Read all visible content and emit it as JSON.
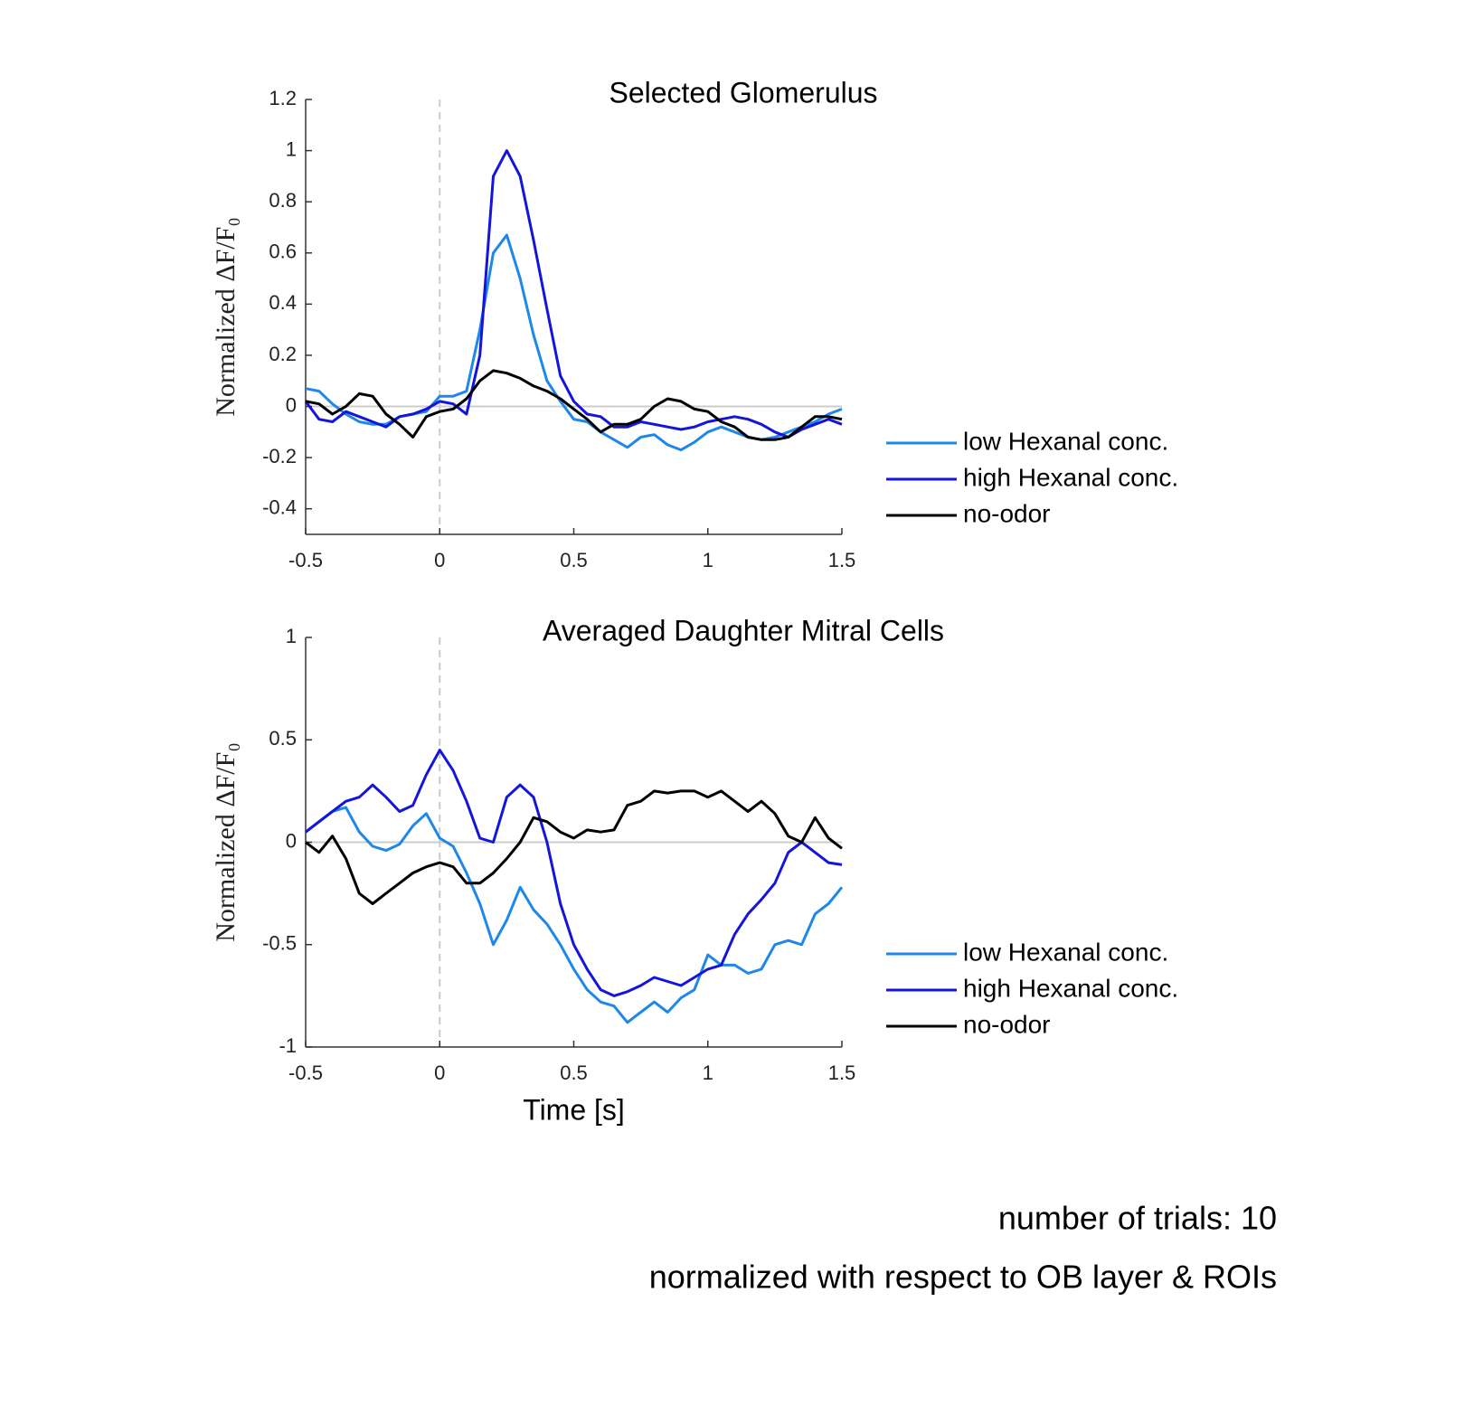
{
  "chart_data": [
    {
      "type": "line",
      "title": "Selected Glomerulus",
      "ylabel": "Normalized ΔF/F₀",
      "x": [
        -0.5,
        -0.45,
        -0.4,
        -0.35,
        -0.3,
        -0.25,
        -0.2,
        -0.15,
        -0.1,
        -0.05,
        0,
        0.05,
        0.1,
        0.15,
        0.2,
        0.25,
        0.3,
        0.35,
        0.4,
        0.45,
        0.5,
        0.55,
        0.6,
        0.65,
        0.7,
        0.75,
        0.8,
        0.85,
        0.9,
        0.95,
        1,
        1.05,
        1.1,
        1.15,
        1.2,
        1.25,
        1.3,
        1.35,
        1.4,
        1.45,
        1.5
      ],
      "series": [
        {
          "name": "low Hexanal conc.",
          "color": "#1e88e8",
          "values": [
            0.07,
            0.06,
            0.01,
            -0.03,
            -0.06,
            -0.07,
            -0.07,
            -0.04,
            -0.03,
            -0.02,
            0.04,
            0.04,
            0.06,
            0.3,
            0.6,
            0.67,
            0.5,
            0.28,
            0.1,
            0.02,
            -0.05,
            -0.06,
            -0.1,
            -0.13,
            -0.16,
            -0.12,
            -0.11,
            -0.15,
            -0.17,
            -0.14,
            -0.1,
            -0.08,
            -0.1,
            -0.12,
            -0.13,
            -0.12,
            -0.1,
            -0.08,
            -0.06,
            -0.03,
            -0.01
          ]
        },
        {
          "name": "high Hexanal conc.",
          "color": "#1414dc",
          "values": [
            0.02,
            -0.05,
            -0.06,
            -0.02,
            -0.04,
            -0.06,
            -0.08,
            -0.04,
            -0.03,
            -0.01,
            0.02,
            0.01,
            -0.03,
            0.2,
            0.9,
            1.0,
            0.9,
            0.65,
            0.38,
            0.12,
            0.02,
            -0.03,
            -0.04,
            -0.08,
            -0.08,
            -0.06,
            -0.07,
            -0.08,
            -0.09,
            -0.08,
            -0.06,
            -0.05,
            -0.04,
            -0.05,
            -0.07,
            -0.1,
            -0.12,
            -0.09,
            -0.07,
            -0.05,
            -0.07
          ]
        },
        {
          "name": "no-odor",
          "color": "#000000",
          "values": [
            0.02,
            0.01,
            -0.03,
            0.0,
            0.05,
            0.04,
            -0.03,
            -0.07,
            -0.12,
            -0.04,
            -0.02,
            -0.01,
            0.03,
            0.1,
            0.14,
            0.13,
            0.11,
            0.08,
            0.06,
            0.03,
            -0.01,
            -0.05,
            -0.1,
            -0.07,
            -0.07,
            -0.05,
            0.0,
            0.03,
            0.02,
            -0.01,
            -0.02,
            -0.06,
            -0.08,
            -0.12,
            -0.13,
            -0.13,
            -0.12,
            -0.08,
            -0.04,
            -0.04,
            -0.05
          ]
        }
      ],
      "xlim": [
        -0.5,
        1.5
      ],
      "xticks": [
        -0.5,
        0,
        0.5,
        1,
        1.5
      ],
      "ylim": [
        -0.5,
        1.2
      ],
      "yticks": [
        -0.4,
        -0.2,
        0,
        0.2,
        0.4,
        0.6,
        0.8,
        1,
        1.2
      ]
    },
    {
      "type": "line",
      "title": "Averaged Daughter Mitral Cells",
      "ylabel": "Normalized ΔF/F₀",
      "xlabel": "Time [s]",
      "x": [
        -0.5,
        -0.45,
        -0.4,
        -0.35,
        -0.3,
        -0.25,
        -0.2,
        -0.15,
        -0.1,
        -0.05,
        0,
        0.05,
        0.1,
        0.15,
        0.2,
        0.25,
        0.3,
        0.35,
        0.4,
        0.45,
        0.5,
        0.55,
        0.6,
        0.65,
        0.7,
        0.75,
        0.8,
        0.85,
        0.9,
        0.95,
        1,
        1.05,
        1.1,
        1.15,
        1.2,
        1.25,
        1.3,
        1.35,
        1.4,
        1.45,
        1.5
      ],
      "series": [
        {
          "name": "low Hexanal conc.",
          "color": "#1e88e8",
          "values": [
            0.05,
            0.1,
            0.15,
            0.17,
            0.05,
            -0.02,
            -0.04,
            -0.01,
            0.08,
            0.14,
            0.02,
            -0.02,
            -0.15,
            -0.3,
            -0.5,
            -0.38,
            -0.22,
            -0.33,
            -0.4,
            -0.5,
            -0.62,
            -0.72,
            -0.78,
            -0.8,
            -0.88,
            -0.83,
            -0.78,
            -0.83,
            -0.76,
            -0.72,
            -0.55,
            -0.6,
            -0.6,
            -0.64,
            -0.62,
            -0.5,
            -0.48,
            -0.5,
            -0.35,
            -0.3,
            -0.22
          ]
        },
        {
          "name": "high Hexanal conc.",
          "color": "#1414dc",
          "values": [
            0.05,
            0.1,
            0.15,
            0.2,
            0.22,
            0.28,
            0.22,
            0.15,
            0.18,
            0.33,
            0.45,
            0.35,
            0.2,
            0.02,
            0.0,
            0.22,
            0.28,
            0.22,
            0.0,
            -0.3,
            -0.5,
            -0.62,
            -0.72,
            -0.75,
            -0.73,
            -0.7,
            -0.66,
            -0.68,
            -0.7,
            -0.66,
            -0.62,
            -0.6,
            -0.45,
            -0.35,
            -0.28,
            -0.2,
            -0.05,
            0.0,
            -0.05,
            -0.1,
            -0.11
          ]
        },
        {
          "name": "no-odor",
          "color": "#000000",
          "values": [
            0.0,
            -0.05,
            0.03,
            -0.08,
            -0.25,
            -0.3,
            -0.25,
            -0.2,
            -0.15,
            -0.12,
            -0.1,
            -0.12,
            -0.2,
            -0.2,
            -0.15,
            -0.08,
            0.0,
            0.12,
            0.1,
            0.05,
            0.02,
            0.06,
            0.05,
            0.06,
            0.18,
            0.2,
            0.25,
            0.24,
            0.25,
            0.25,
            0.22,
            0.25,
            0.2,
            0.15,
            0.2,
            0.14,
            0.03,
            0.0,
            0.12,
            0.02,
            -0.03
          ]
        }
      ],
      "xlim": [
        -0.5,
        1.5
      ],
      "xticks": [
        -0.5,
        0,
        0.5,
        1,
        1.5
      ],
      "ylim": [
        -1,
        1
      ],
      "yticks": [
        -1,
        -0.5,
        0,
        0.5,
        1
      ]
    }
  ],
  "notes": [
    "number of trials: 10",
    "normalized with respect to OB layer & ROIs"
  ]
}
